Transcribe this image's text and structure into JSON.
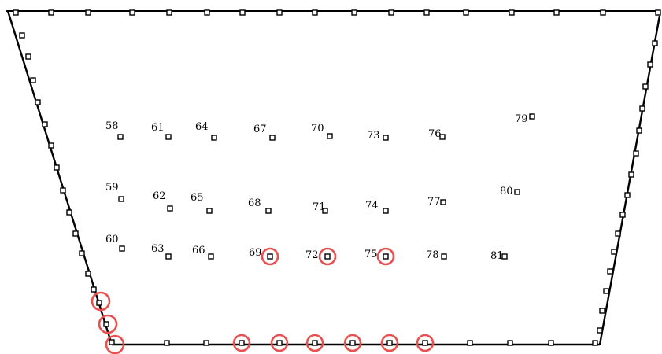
{
  "diagram": {
    "outline_color": "#000000",
    "highlight_color": "#e8514f",
    "interior_nodes": [
      {
        "label": "58",
        "highlighted": false
      },
      {
        "label": "59",
        "highlighted": false
      },
      {
        "label": "60",
        "highlighted": false
      },
      {
        "label": "61",
        "highlighted": false
      },
      {
        "label": "62",
        "highlighted": false
      },
      {
        "label": "63",
        "highlighted": false
      },
      {
        "label": "64",
        "highlighted": false
      },
      {
        "label": "65",
        "highlighted": false
      },
      {
        "label": "66",
        "highlighted": false
      },
      {
        "label": "67",
        "highlighted": false
      },
      {
        "label": "68",
        "highlighted": false
      },
      {
        "label": "69",
        "highlighted": true
      },
      {
        "label": "70",
        "highlighted": false
      },
      {
        "label": "71",
        "highlighted": false
      },
      {
        "label": "72",
        "highlighted": true
      },
      {
        "label": "73",
        "highlighted": false
      },
      {
        "label": "74",
        "highlighted": false
      },
      {
        "label": "75",
        "highlighted": true
      },
      {
        "label": "76",
        "highlighted": false
      },
      {
        "label": "77",
        "highlighted": false
      },
      {
        "label": "78",
        "highlighted": false
      },
      {
        "label": "79",
        "highlighted": false
      },
      {
        "label": "80",
        "highlighted": false
      },
      {
        "label": "81",
        "highlighted": false
      }
    ]
  }
}
